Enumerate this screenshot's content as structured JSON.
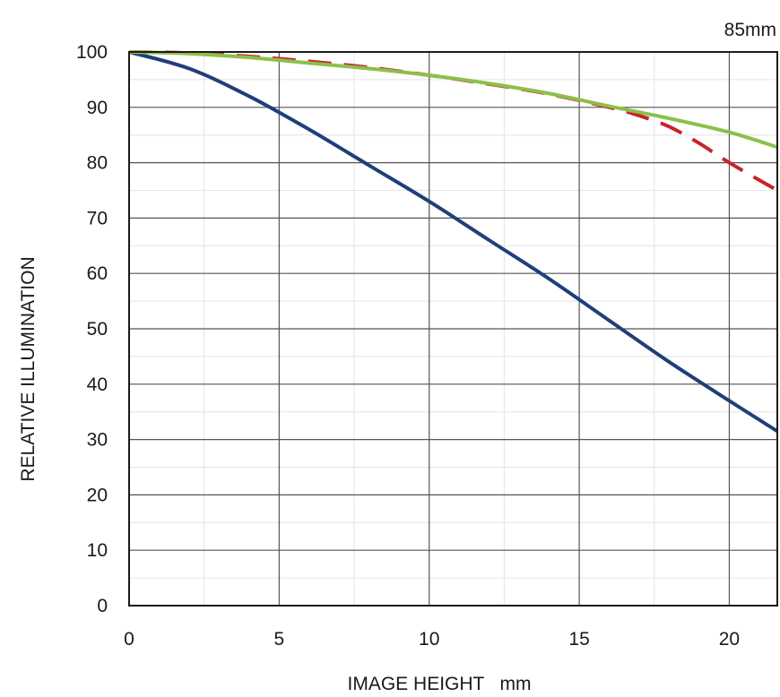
{
  "chart_data": {
    "type": "line",
    "title": "85mm",
    "xlabel": "IMAGE HEIGHT   mm",
    "ylabel": "RELATIVE ILLUMINATION",
    "xlim": [
      0,
      21.6
    ],
    "ylim": [
      0,
      100
    ],
    "x_ticks": [
      0,
      5,
      10,
      15,
      20
    ],
    "y_ticks": [
      0,
      10,
      20,
      30,
      40,
      50,
      60,
      70,
      80,
      90,
      100
    ],
    "x_tick_labels": [
      "0",
      "5",
      "10",
      "15",
      "20"
    ],
    "y_tick_labels": [
      "0",
      "10",
      "20",
      "30",
      "40",
      "50",
      "60",
      "70",
      "80",
      "90",
      "100"
    ],
    "grid": true,
    "legend": "none",
    "series": [
      {
        "color": "#1f3f7a",
        "style": "solid",
        "x": [
          0,
          2,
          4,
          6,
          8,
          10,
          12,
          14,
          16,
          18,
          20,
          21.6
        ],
        "y": [
          100,
          97,
          92,
          86,
          79.5,
          73,
          66,
          59,
          51.5,
          44,
          37,
          31.5
        ]
      },
      {
        "color": "#c8232c",
        "style": "dashed",
        "x": [
          0,
          2,
          4,
          6,
          8,
          10,
          12,
          14,
          16,
          17,
          18,
          19,
          20,
          21.6
        ],
        "y": [
          100,
          99.8,
          99.2,
          98.3,
          97.2,
          95.8,
          94.2,
          92.4,
          90,
          88.5,
          86.5,
          83.5,
          80,
          75
        ]
      },
      {
        "color": "#8dbf4b",
        "style": "solid",
        "x": [
          0,
          2,
          4,
          6,
          8,
          10,
          12,
          14,
          16,
          18,
          20,
          21.6
        ],
        "y": [
          100,
          99.7,
          99,
          98,
          97,
          95.8,
          94.3,
          92.5,
          90.2,
          88,
          85.5,
          82.8
        ]
      }
    ]
  }
}
